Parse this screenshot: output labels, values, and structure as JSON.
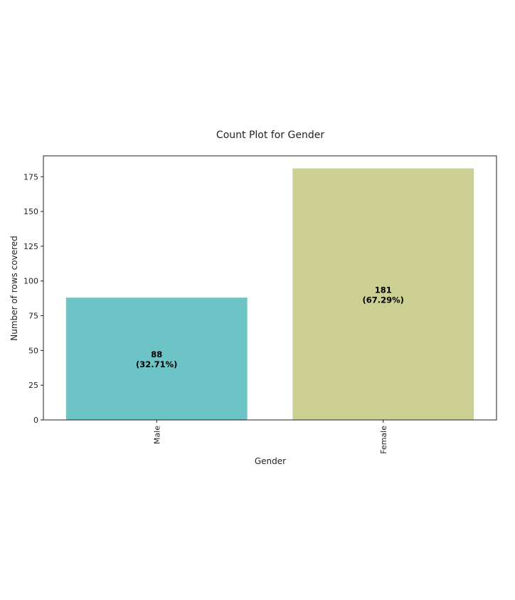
{
  "chart_data": {
    "type": "bar",
    "title": "Count Plot for Gender",
    "xlabel": "Gender",
    "ylabel": "Number of rows covered",
    "categories": [
      "Male",
      "Female"
    ],
    "values": [
      88,
      181
    ],
    "bar_labels": [
      {
        "count": "88",
        "percent": "(32.71%)"
      },
      {
        "count": "181",
        "percent": "(67.29%)"
      }
    ],
    "bar_colors": [
      "#6cc4c6",
      "#cccf92"
    ],
    "yticks": [
      0,
      25,
      50,
      75,
      100,
      125,
      150,
      175
    ],
    "ylim": [
      0,
      190
    ],
    "grid": false,
    "legend": "none"
  }
}
